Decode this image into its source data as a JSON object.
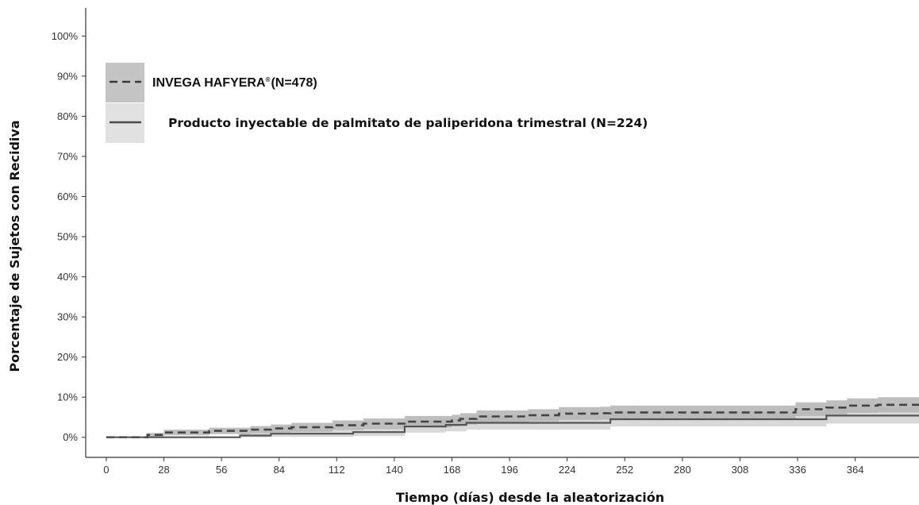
{
  "chart_data": {
    "type": "line",
    "xlabel": "Tiempo (días) desde la aleatorización",
    "ylabel": "Porcentaje de Sujetos con Recidiva",
    "xlim": [
      -10,
      395
    ],
    "ylim": [
      -5,
      107
    ],
    "x_ticks": [
      "0",
      "28",
      "56",
      "84",
      "112",
      "140",
      "168",
      "196",
      "224",
      "252",
      "280",
      "308",
      "336",
      "364"
    ],
    "y_ticks": [
      "0%",
      "10%",
      "20%",
      "30%",
      "40%",
      "50%",
      "60%",
      "70%",
      "80%",
      "90%",
      "100%"
    ],
    "legend_position": "top-left",
    "grid": false,
    "series": [
      {
        "name": "INVEGA HAFYERA",
        "name_sup": "®",
        "n_label": "(N=478)",
        "line_style": "dashed",
        "color": "#444444",
        "band_color": "#b3b3b3",
        "x": [
          0,
          20,
          28,
          50,
          70,
          80,
          90,
          110,
          125,
          145,
          168,
          172,
          180,
          205,
          220,
          240,
          245,
          330,
          335,
          350,
          360,
          375,
          395
        ],
        "y": [
          0,
          0.6,
          1.2,
          1.6,
          1.9,
          2.2,
          2.5,
          3.0,
          3.4,
          3.9,
          4.2,
          4.6,
          5.2,
          5.5,
          5.9,
          6.0,
          6.2,
          6.2,
          7.0,
          7.4,
          7.9,
          8.1,
          8.1
        ],
        "ci_lower": [
          0,
          0.1,
          0.5,
          0.8,
          1.0,
          1.2,
          1.4,
          1.8,
          2.1,
          2.5,
          2.8,
          3.2,
          3.7,
          4.0,
          4.3,
          4.4,
          4.6,
          4.6,
          5.3,
          5.6,
          6.1,
          6.2,
          6.2
        ],
        "ci_upper": [
          0,
          1.1,
          1.9,
          2.4,
          2.8,
          3.2,
          3.6,
          4.2,
          4.7,
          5.3,
          5.6,
          6.0,
          6.7,
          7.0,
          7.5,
          7.6,
          7.9,
          7.9,
          8.7,
          9.2,
          9.7,
          10.0,
          10.0
        ]
      },
      {
        "name": "Producto inyectable de palmitato de paliperidona trimestral",
        "n_label": "(N=224)",
        "line_style": "solid",
        "color": "#555555",
        "band_color": "#d9d9d9",
        "x": [
          0,
          65,
          80,
          120,
          140,
          145,
          165,
          175,
          245,
          335,
          350,
          395
        ],
        "y": [
          0,
          0.45,
          0.9,
          1.3,
          1.3,
          2.7,
          3.1,
          3.6,
          4.5,
          4.5,
          5.4,
          5.4
        ],
        "ci_lower": [
          0,
          0,
          0.1,
          0.3,
          0.3,
          1.2,
          1.5,
          1.9,
          2.7,
          2.7,
          3.4,
          3.4
        ],
        "ci_upper": [
          0,
          1.1,
          1.8,
          2.4,
          2.4,
          4.3,
          4.8,
          5.4,
          6.4,
          6.4,
          7.5,
          7.5
        ]
      }
    ]
  }
}
